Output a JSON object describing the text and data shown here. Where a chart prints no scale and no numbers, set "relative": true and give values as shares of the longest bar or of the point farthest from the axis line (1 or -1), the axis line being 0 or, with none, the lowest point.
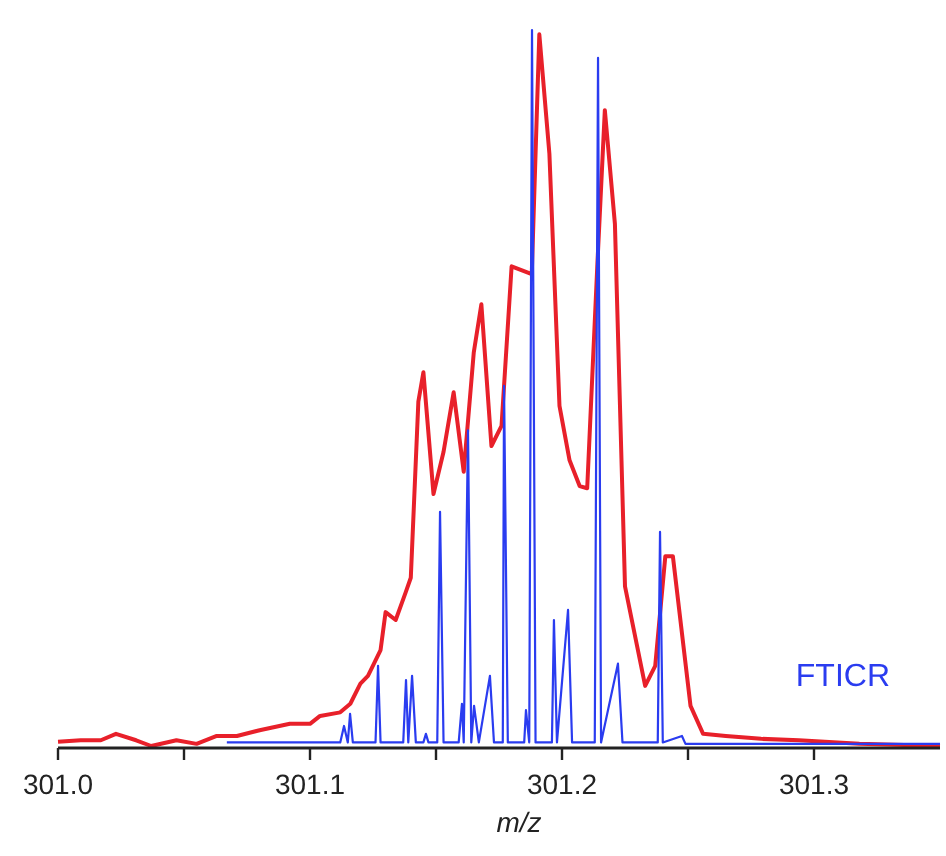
{
  "chart_data": {
    "type": "line",
    "relative": true,
    "xlabel": "m/z",
    "xlim": [
      301.0,
      301.35
    ],
    "xticks": [
      {
        "value": 301.0,
        "label": "301.0"
      },
      {
        "value": 301.05,
        "label": null
      },
      301.1,
      {
        "value": 301.15,
        "label": null
      },
      301.2,
      {
        "value": 301.25,
        "label": null
      },
      301.3
    ],
    "legend": "right",
    "grid": false,
    "marker": "none",
    "line_style": "solid",
    "series": [
      {
        "color": "#e8202a",
        "x": [
          301.0,
          301.009,
          301.017,
          301.023,
          301.031,
          301.037,
          301.047,
          301.055,
          301.063,
          301.071,
          301.08,
          301.092,
          301.1,
          301.104,
          301.112,
          301.116,
          301.12,
          301.123,
          301.128,
          301.13,
          301.134,
          301.138,
          301.14,
          301.143,
          301.145,
          301.149,
          301.153,
          301.157,
          301.161,
          301.165,
          301.168,
          301.172,
          301.176,
          301.18,
          301.188,
          301.191,
          301.195,
          301.199,
          301.203,
          301.207,
          301.21,
          301.214,
          301.217,
          301.221,
          301.225,
          301.233,
          301.237,
          301.241,
          301.244,
          301.251,
          301.256,
          301.265,
          301.279,
          301.294,
          301.318,
          301.35
        ],
        "values": [
          0.006,
          0.008,
          0.008,
          0.017,
          0.008,
          0,
          0.008,
          0.003,
          0.014,
          0.014,
          0.022,
          0.031,
          0.031,
          0.042,
          0.047,
          0.059,
          0.087,
          0.098,
          0.134,
          0.187,
          0.176,
          0.215,
          0.235,
          0.481,
          0.522,
          0.352,
          0.411,
          0.494,
          0.383,
          0.55,
          0.617,
          0.419,
          0.447,
          0.67,
          0.659,
          0.994,
          0.827,
          0.475,
          0.399,
          0.363,
          0.36,
          0.67,
          0.888,
          0.729,
          0.223,
          0.084,
          0.112,
          0.265,
          0.265,
          0.056,
          0.017,
          0.014,
          0.01,
          0.008,
          0.003,
          0
        ]
      },
      {
        "name": "FTICR",
        "color": "#2a3cf0",
        "x": [
          301.067,
          301.112,
          301.1135,
          301.115,
          301.1159,
          301.117,
          301.126,
          301.127,
          301.128,
          301.137,
          301.1381,
          301.139,
          301.1405,
          301.142,
          301.145,
          301.146,
          301.147,
          301.1505,
          301.1516,
          301.153,
          301.159,
          301.1603,
          301.161,
          301.1627,
          301.164,
          301.1651,
          301.167,
          301.1714,
          301.173,
          301.1765,
          301.177,
          301.1785,
          301.185,
          301.1857,
          301.187,
          301.1881,
          301.1895,
          301.196,
          301.1968,
          301.198,
          301.2024,
          301.204,
          301.213,
          301.2143,
          301.2155,
          301.2222,
          301.224,
          301.238,
          301.2389,
          301.24,
          301.2476,
          301.249,
          301.35
        ],
        "values": [
          0.005,
          0.005,
          0.028,
          0.005,
          0.045,
          0.005,
          0.005,
          0.112,
          0.005,
          0.005,
          0.092,
          0.005,
          0.098,
          0.005,
          0.005,
          0.017,
          0.005,
          0.005,
          0.327,
          0.005,
          0.005,
          0.059,
          0.005,
          0.441,
          0.005,
          0.056,
          0.005,
          0.098,
          0.005,
          0.005,
          0.503,
          0.005,
          0.005,
          0.05,
          0.005,
          1.0,
          0.005,
          0.005,
          0.176,
          0.005,
          0.19,
          0.005,
          0.005,
          0.961,
          0.005,
          0.115,
          0.005,
          0.005,
          0.299,
          0.005,
          0.014,
          0.003,
          0.003
        ]
      }
    ]
  }
}
